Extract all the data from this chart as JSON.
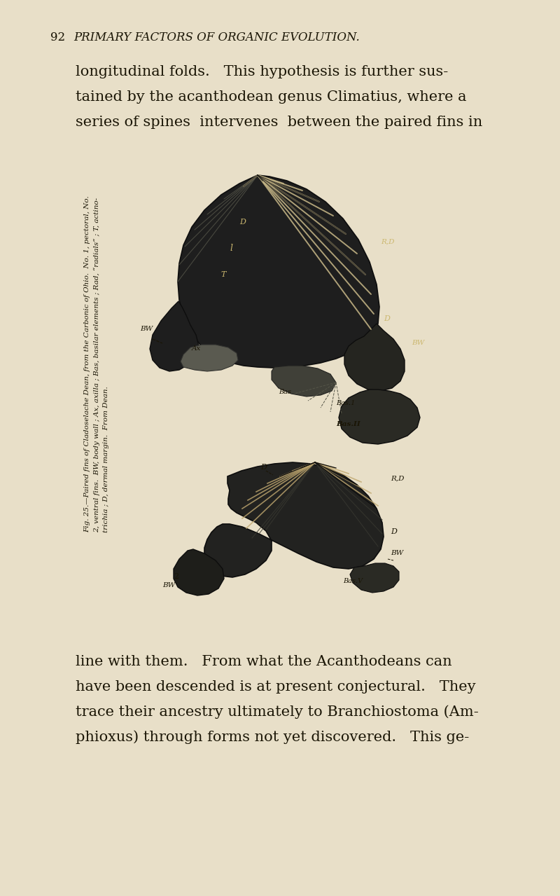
{
  "page_bg": "#e8dfc8",
  "text_color": "#1a1505",
  "fig_width": 800,
  "fig_height": 1279,
  "page_number": "92",
  "header_text": "PRIMARY FACTORS OF ORGANIC EVOLUTION.",
  "top_lines": [
    "longitudinal folds.   This hypothesis is further sus-",
    "tained by the acanthodean genus Climatius, where a",
    "series of spines  intervenes  between the paired fins in"
  ],
  "bottom_lines": [
    "line with them.   From what the Acanthodeans can",
    "have been descended is at present conjectural.   They",
    "trace their ancestry ultimately to Branchiostoma (Am-",
    "phioxus) through forms not yet discovered.   This ge-"
  ],
  "caption_lines": [
    "Fig. 25.—Paired fins of Cladoselache Dean, from the Carbonic of Ohio.  No. 1, pectoral, No.",
    "2, ventral fins.  BW, body wall ; Ax, axilla ; Bas, basilar elements ; Rad, “radials” ; T, actino-",
    "trichia ; D, dermal margin.  From Dean."
  ]
}
